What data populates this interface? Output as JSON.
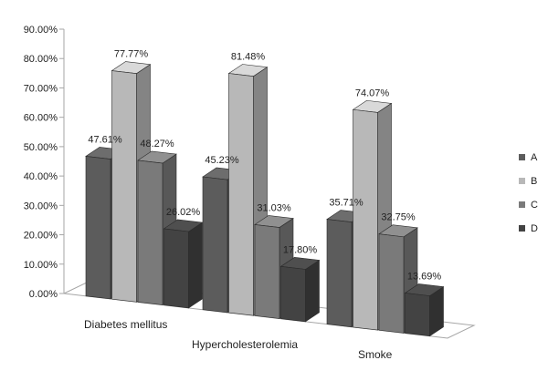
{
  "chart_data": {
    "type": "bar",
    "categories": [
      "Diabetes mellitus",
      "Hypercholesterolemia",
      "Smoke"
    ],
    "series": [
      {
        "name": "A",
        "values": [
          47.61,
          45.23,
          35.71
        ],
        "labels": [
          "47.61%",
          "45.23%",
          "35.71%"
        ],
        "color": "#5c5c5c"
      },
      {
        "name": "B",
        "values": [
          77.77,
          81.48,
          74.07
        ],
        "labels": [
          "77.77%",
          "81.48%",
          "74.07%"
        ],
        "color": "#b8b8b8"
      },
      {
        "name": "C",
        "values": [
          48.27,
          31.03,
          32.75
        ],
        "labels": [
          "48.27%",
          "31.03%",
          "32.75%"
        ],
        "color": "#7a7a7a"
      },
      {
        "name": "D",
        "values": [
          26.02,
          17.8,
          13.69
        ],
        "labels": [
          "26.02%",
          "17.80%",
          "13.69%"
        ],
        "color": "#434343"
      }
    ],
    "y_ticks": [
      "0.00%",
      "10.00%",
      "20.00%",
      "30.00%",
      "40.00%",
      "50.00%",
      "60.00%",
      "70.00%",
      "80.00%",
      "90.00%"
    ],
    "ylim": [
      0,
      90
    ],
    "legend_position": "right",
    "grid": false,
    "style": "3d-clustered-column"
  }
}
